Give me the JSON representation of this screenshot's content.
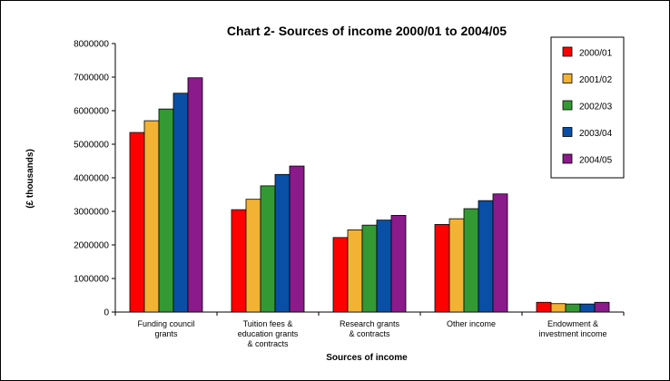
{
  "chart_data": {
    "type": "bar",
    "title": "Chart 2- Sources of income 2000/01 to 2004/05",
    "xlabel": "Sources of income",
    "ylabel": "(£ thousands)",
    "ylim": [
      0,
      8000000
    ],
    "yticks": [
      "0",
      "1000000",
      "2000000",
      "3000000",
      "4000000",
      "5000000",
      "6000000",
      "7000000",
      "8000000"
    ],
    "grid": false,
    "legend_position": "top-right",
    "categories": [
      [
        "Funding council",
        "grants"
      ],
      [
        "Tuition fees &",
        "education grants",
        "& contracts"
      ],
      [
        "Research grants",
        "& contracts"
      ],
      [
        "Other income"
      ],
      [
        "Endowment &",
        "investment income"
      ]
    ],
    "series": [
      {
        "name": "2000/01",
        "color": "#ff0000",
        "values": [
          5350000,
          3050000,
          2220000,
          2610000,
          290000
        ]
      },
      {
        "name": "2001/02",
        "color": "#f2b233",
        "values": [
          5700000,
          3360000,
          2450000,
          2780000,
          250000
        ]
      },
      {
        "name": "2002/03",
        "color": "#339933",
        "values": [
          6050000,
          3760000,
          2590000,
          3080000,
          240000
        ]
      },
      {
        "name": "2003/04",
        "color": "#0a4fa6",
        "values": [
          6520000,
          4100000,
          2740000,
          3320000,
          240000
        ]
      },
      {
        "name": "2004/05",
        "color": "#8b1a8b",
        "values": [
          6980000,
          4350000,
          2880000,
          3520000,
          290000
        ]
      }
    ]
  }
}
